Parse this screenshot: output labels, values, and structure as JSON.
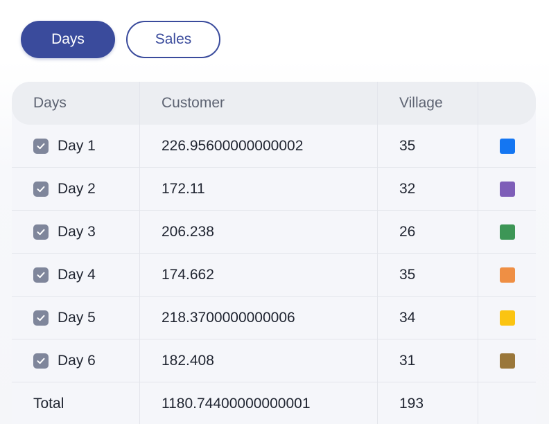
{
  "tabs": [
    {
      "label": "Days",
      "active": true
    },
    {
      "label": "Sales",
      "active": false
    }
  ],
  "table": {
    "headers": [
      "Days",
      "Customer",
      "Village",
      ""
    ],
    "rows": [
      {
        "day": "Day 1",
        "customer": "226.95600000000002",
        "village": "35",
        "color": "#1476f2",
        "checked": true
      },
      {
        "day": "Day 2",
        "customer": "172.11",
        "village": "32",
        "color": "#7e5eb8",
        "checked": true
      },
      {
        "day": "Day 3",
        "customer": "206.238",
        "village": "26",
        "color": "#3d9656",
        "checked": true
      },
      {
        "day": "Day 4",
        "customer": "174.662",
        "village": "35",
        "color": "#ef8f44",
        "checked": true
      },
      {
        "day": "Day 5",
        "customer": "218.3700000000006",
        "village": "34",
        "color": "#fbc412",
        "checked": true
      },
      {
        "day": "Day 6",
        "customer": "182.408",
        "village": "31",
        "color": "#9a773a",
        "checked": true
      }
    ],
    "total": {
      "label": "Total",
      "customer": "1180.74400000000001",
      "village": "193"
    }
  },
  "icons": {
    "checkbox": "checkmark-icon",
    "swatch": "color-swatch"
  }
}
